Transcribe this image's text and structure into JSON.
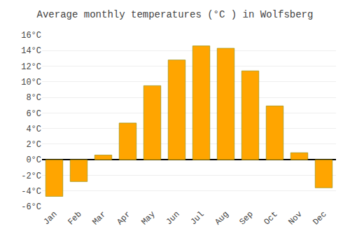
{
  "chart_data": {
    "type": "bar",
    "title": "Average monthly temperatures (°C ) in Wolfsberg",
    "categories": [
      "Jan",
      "Feb",
      "Mar",
      "Apr",
      "May",
      "Jun",
      "Jul",
      "Aug",
      "Sep",
      "Oct",
      "Nov",
      "Dec"
    ],
    "values": [
      -4.7,
      -2.8,
      0.6,
      4.7,
      9.5,
      12.8,
      14.6,
      14.3,
      11.4,
      6.9,
      0.9,
      -3.6
    ],
    "color": "#FFA500",
    "ylim": [
      -6,
      16
    ],
    "yticks": [
      {
        "value": -6,
        "label": "-6°C"
      },
      {
        "value": -4,
        "label": "-4°C"
      },
      {
        "value": -2,
        "label": "-2°C"
      },
      {
        "value": 0,
        "label": "0°C"
      },
      {
        "value": 2,
        "label": "2°C"
      },
      {
        "value": 4,
        "label": "4°C"
      },
      {
        "value": 6,
        "label": "6°C"
      },
      {
        "value": 8,
        "label": "8°C"
      },
      {
        "value": 10,
        "label": "10°C"
      },
      {
        "value": 12,
        "label": "12°C"
      },
      {
        "value": 14,
        "label": "14°C"
      },
      {
        "value": 16,
        "label": "16°C"
      }
    ],
    "grid": true
  }
}
